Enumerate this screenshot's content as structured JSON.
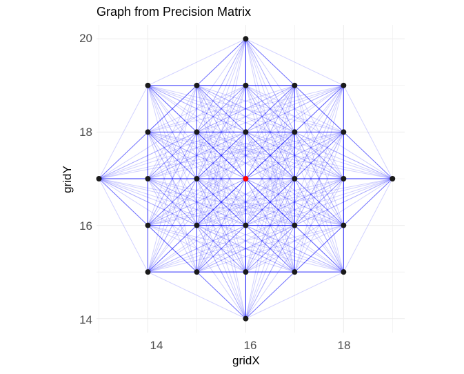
{
  "chart_data": {
    "type": "scatter",
    "title": "Graph from Precision Matrix",
    "xlabel": "gridX",
    "ylabel": "gridY",
    "xlim": [
      12.95,
      19.25
    ],
    "ylim": [
      13.7,
      20.3
    ],
    "x_ticks": [
      14,
      16,
      18
    ],
    "y_ticks": [
      14,
      16,
      18,
      20
    ],
    "x_tick_labels": [
      "14",
      "16",
      "18"
    ],
    "y_tick_labels": [
      "14",
      "16",
      "18",
      "20"
    ],
    "grid": true,
    "highlight_node": [
      16,
      17
    ],
    "colors": {
      "node": "#1a1a1a",
      "highlight": "#ff0000",
      "edge": "#0000ff",
      "grid": "#ebebeb"
    },
    "nodes": [
      [
        16,
        20
      ],
      [
        14,
        19
      ],
      [
        15,
        19
      ],
      [
        16,
        19
      ],
      [
        17,
        19
      ],
      [
        18,
        19
      ],
      [
        14,
        18
      ],
      [
        15,
        18
      ],
      [
        16,
        18
      ],
      [
        17,
        18
      ],
      [
        18,
        18
      ],
      [
        13,
        17
      ],
      [
        14,
        17
      ],
      [
        15,
        17
      ],
      [
        16,
        17
      ],
      [
        17,
        17
      ],
      [
        18,
        17
      ],
      [
        19,
        17
      ],
      [
        14,
        16
      ],
      [
        15,
        16
      ],
      [
        16,
        16
      ],
      [
        17,
        16
      ],
      [
        18,
        16
      ],
      [
        14,
        15
      ],
      [
        15,
        15
      ],
      [
        16,
        15
      ],
      [
        17,
        15
      ],
      [
        18,
        15
      ],
      [
        16,
        14
      ]
    ]
  }
}
